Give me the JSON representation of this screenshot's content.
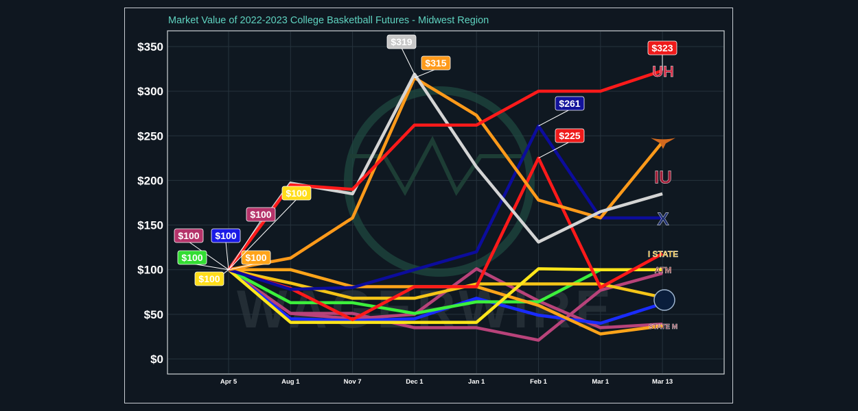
{
  "chart_data": {
    "type": "line",
    "title": "Market Value of 2022-2023 College Basketball Futures - Midwest Region",
    "xlabel": "",
    "ylabel": "",
    "x": [
      "Apr 5",
      "Aug 1",
      "Nov 7",
      "Dec 1",
      "Jan 1",
      "Feb 1",
      "Mar 1",
      "Mar 13"
    ],
    "yticks": [
      "$0",
      "$50",
      "$100",
      "$150",
      "$200",
      "$250",
      "$300",
      "$350"
    ],
    "ylim": [
      0,
      380
    ],
    "grid": true,
    "legend": "team logos at line ends (right)",
    "watermark": "WAGERWIRE",
    "series": [
      {
        "color": "#ff1a1a",
        "logo": "UH",
        "values": [
          100,
          195,
          190,
          262,
          262,
          300,
          300,
          323
        ]
      },
      {
        "color": "#d4d4d4",
        "logo": "IU",
        "values": [
          100,
          197,
          185,
          319,
          215,
          131,
          165,
          185
        ]
      },
      {
        "color": "#ff9a1a",
        "logo": "Longhorn",
        "values": [
          100,
          113,
          158,
          315,
          273,
          178,
          158,
          243
        ]
      },
      {
        "color": "#0c0c9c",
        "logo": "X",
        "values": [
          100,
          78,
          80,
          100,
          120,
          261,
          158,
          158
        ]
      },
      {
        "color": "#ff1a1a",
        "logo": "I STATE",
        "values": [
          100,
          79,
          44,
          81,
          81,
          225,
          80,
          118
        ]
      },
      {
        "color": "#ffe61a",
        "logo": "ATM",
        "values": [
          100,
          41,
          41,
          41,
          41,
          101,
          100,
          100
        ]
      },
      {
        "color": "#f5c518",
        "logo": "Hawk",
        "values": [
          100,
          85,
          68,
          68,
          84,
          84,
          84,
          69
        ]
      },
      {
        "color": "#ffa41a",
        "logo": "",
        "values": [
          100,
          100,
          81,
          81,
          81,
          60,
          28,
          37
        ]
      },
      {
        "color": "#3cf03c",
        "logo": "",
        "values": [
          100,
          63,
          63,
          51,
          64,
          64,
          100,
          null
        ]
      },
      {
        "color": "#1a2cff",
        "logo": "",
        "values": [
          100,
          45,
          43,
          45,
          68,
          49,
          40,
          62
        ]
      },
      {
        "color": "#b8437a",
        "logo": "",
        "values": [
          100,
          51,
          51,
          35,
          35,
          21,
          77,
          96
        ]
      },
      {
        "color": "#b8437a",
        "logo": "STATE M",
        "values": [
          100,
          51,
          45,
          50,
          101,
          65,
          35,
          39
        ]
      }
    ],
    "annotations": [
      {
        "text": "$100",
        "color": "#b5336a",
        "series": 10,
        "at": "Apr 5"
      },
      {
        "text": "$100",
        "color": "#1a1ae6",
        "series": 9,
        "at": "Apr 5"
      },
      {
        "text": "$100",
        "color": "#33dd33",
        "series": 8,
        "at": "Apr 5"
      },
      {
        "text": "$100",
        "color": "#ffa41a",
        "series": 2,
        "at": "Apr 5"
      },
      {
        "text": "$100",
        "color": "#ffdd1a",
        "series": 5,
        "at": "Apr 5"
      },
      {
        "text": "$100",
        "color": "#b5336a",
        "series": 11,
        "at": "Apr 5"
      },
      {
        "text": "$100",
        "color": "#ffdd1a",
        "series": 6,
        "at": "Apr 5"
      },
      {
        "text": "$319",
        "color": "#c8c8c8",
        "series": 1,
        "at": "Dec 1"
      },
      {
        "text": "$315",
        "color": "#ff9a1a",
        "series": 2,
        "at": "Dec 1"
      },
      {
        "text": "$261",
        "color": "#12129a",
        "series": 3,
        "at": "Feb 1"
      },
      {
        "text": "$225",
        "color": "#ee1a1a",
        "series": 4,
        "at": "Feb 1"
      },
      {
        "text": "$323",
        "color": "#ee1a1a",
        "series": 0,
        "at": "Mar 13"
      }
    ]
  }
}
